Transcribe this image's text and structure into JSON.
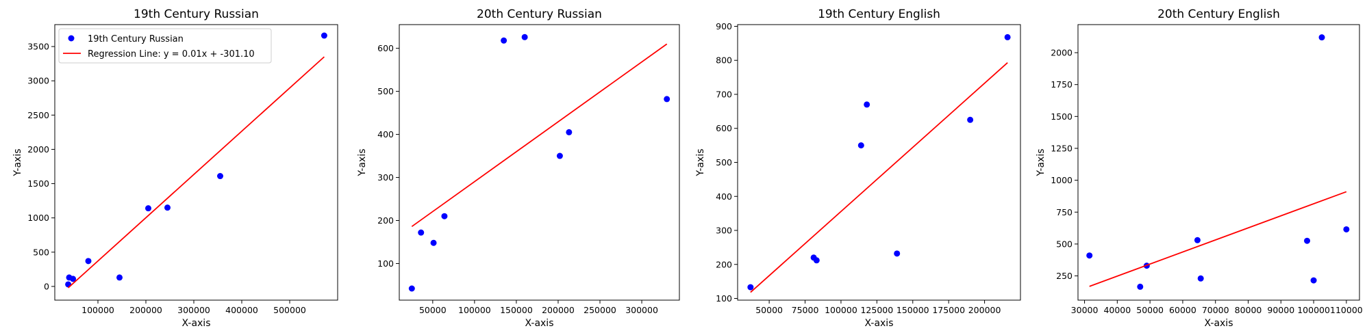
{
  "chart_data": [
    {
      "type": "scatter",
      "title": "19th Century Russian",
      "xlabel": "X-axis",
      "ylabel": "Y-axis",
      "xlim": [
        10000,
        600000
      ],
      "ylim": [
        -200,
        3820
      ],
      "xticks": [
        100000,
        200000,
        300000,
        400000,
        500000
      ],
      "yticks": [
        0,
        500,
        1000,
        1500,
        2000,
        2500,
        3000,
        3500
      ],
      "points": [
        [
          38000,
          30
        ],
        [
          40000,
          130
        ],
        [
          48000,
          110
        ],
        [
          80000,
          370
        ],
        [
          145000,
          130
        ],
        [
          205000,
          1140
        ],
        [
          245000,
          1150
        ],
        [
          355000,
          1610
        ],
        [
          572000,
          3660
        ]
      ],
      "regression": {
        "x": [
          38000,
          572000
        ],
        "y": [
          -20,
          3350
        ]
      },
      "series": [
        {
          "name": "19th Century Russian"
        },
        {
          "name": "Regression Line: y = 0.01x + -301.10"
        }
      ],
      "legend": "top-left"
    },
    {
      "type": "scatter",
      "title": "20th Century Russian",
      "xlabel": "X-axis",
      "ylabel": "Y-axis",
      "xlim": [
        10000,
        345000
      ],
      "ylim": [
        15,
        655
      ],
      "xticks": [
        50000,
        100000,
        150000,
        200000,
        250000,
        300000
      ],
      "yticks": [
        100,
        200,
        300,
        400,
        500,
        600
      ],
      "points": [
        [
          25000,
          42
        ],
        [
          36000,
          172
        ],
        [
          51000,
          148
        ],
        [
          64000,
          210
        ],
        [
          135000,
          618
        ],
        [
          160000,
          626
        ],
        [
          202000,
          350
        ],
        [
          213000,
          405
        ],
        [
          330000,
          482
        ]
      ],
      "regression": {
        "x": [
          25000,
          330000
        ],
        "y": [
          186,
          610
        ]
      }
    },
    {
      "type": "scatter",
      "title": "19th Century English",
      "xlabel": "X-axis",
      "ylabel": "Y-axis",
      "xlim": [
        28000,
        225000
      ],
      "ylim": [
        95,
        905
      ],
      "xticks": [
        50000,
        75000,
        100000,
        125000,
        150000,
        175000,
        200000
      ],
      "yticks": [
        100,
        200,
        300,
        400,
        500,
        600,
        700,
        800,
        900
      ],
      "points": [
        [
          37000,
          133
        ],
        [
          81000,
          220
        ],
        [
          83000,
          212
        ],
        [
          114000,
          550
        ],
        [
          118000,
          670
        ],
        [
          139000,
          232
        ],
        [
          190000,
          625
        ],
        [
          216000,
          868
        ]
      ],
      "regression": {
        "x": [
          37000,
          216000
        ],
        "y": [
          118,
          793
        ]
      }
    },
    {
      "type": "scatter",
      "title": "20th Century English",
      "xlabel": "X-axis",
      "ylabel": "Y-axis",
      "xlim": [
        28000,
        114000
      ],
      "ylim": [
        60,
        2220
      ],
      "xticks": [
        30000,
        40000,
        50000,
        60000,
        70000,
        80000,
        90000,
        100000,
        110000
      ],
      "yticks": [
        250,
        500,
        750,
        1000,
        1250,
        1500,
        1750,
        2000
      ],
      "points": [
        [
          31500,
          410
        ],
        [
          47000,
          165
        ],
        [
          49000,
          330
        ],
        [
          64500,
          530
        ],
        [
          65500,
          230
        ],
        [
          98000,
          525
        ],
        [
          100000,
          215
        ],
        [
          102500,
          2120
        ],
        [
          110000,
          615
        ]
      ],
      "regression": {
        "x": [
          31500,
          110000
        ],
        "y": [
          168,
          910
        ]
      }
    }
  ],
  "colors": {
    "points": "#0000ff",
    "regression": "#ff0000",
    "axes": "#000000",
    "legend_border": "#cccccc"
  }
}
